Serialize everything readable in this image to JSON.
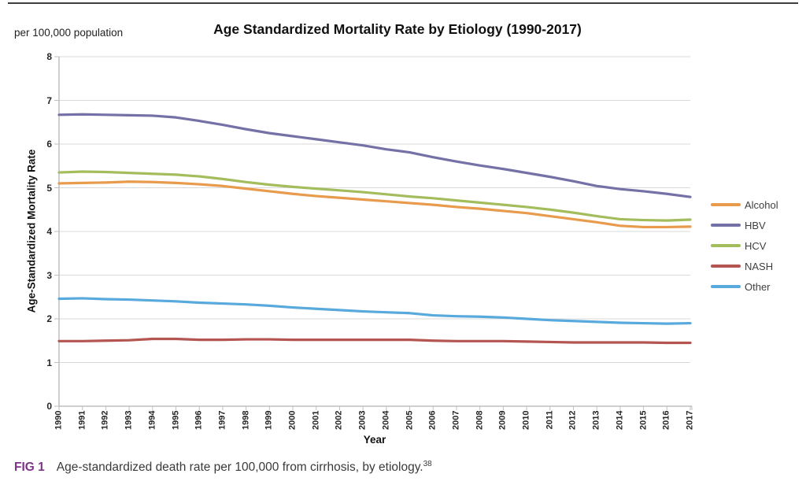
{
  "page": {
    "unit_label": "per 100,000 population",
    "caption_tag": "FIG 1",
    "caption_text": "Age-standardized death rate per 100,000 from cirrhosis, by etiology.",
    "caption_superscript": "38"
  },
  "chart_data": {
    "type": "line",
    "title": "Age Standardized Mortality Rate by Etiology (1990-2017)",
    "xlabel": "Year",
    "ylabel": "Age-Standardized Mortality Rate",
    "ylim": [
      0,
      8
    ],
    "y_ticks": [
      0,
      1,
      2,
      3,
      4,
      5,
      6,
      7,
      8
    ],
    "grid": true,
    "legend_position": "right",
    "x": [
      1990,
      1991,
      1992,
      1993,
      1994,
      1995,
      1996,
      1997,
      1998,
      1999,
      2000,
      2001,
      2002,
      2003,
      2004,
      2005,
      2006,
      2007,
      2008,
      2009,
      2010,
      2011,
      2012,
      2013,
      2014,
      2015,
      2016,
      2017
    ],
    "series": [
      {
        "name": "Alcohol",
        "color": "#E89A4D",
        "values": [
          5.1,
          5.11,
          5.12,
          5.14,
          5.13,
          5.11,
          5.08,
          5.04,
          4.98,
          4.92,
          4.86,
          4.81,
          4.77,
          4.73,
          4.69,
          4.65,
          4.61,
          4.56,
          4.52,
          4.47,
          4.42,
          4.35,
          4.28,
          4.21,
          4.13,
          4.1,
          4.1,
          4.11
        ]
      },
      {
        "name": "HBV",
        "color": "#7471A6",
        "values": [
          6.67,
          6.68,
          6.67,
          6.66,
          6.65,
          6.61,
          6.53,
          6.44,
          6.34,
          6.25,
          6.18,
          6.11,
          6.04,
          5.97,
          5.88,
          5.81,
          5.7,
          5.6,
          5.51,
          5.43,
          5.34,
          5.25,
          5.15,
          5.04,
          4.97,
          4.92,
          4.86,
          4.79
        ]
      },
      {
        "name": "HCV",
        "color": "#A3BD5C",
        "values": [
          5.35,
          5.37,
          5.36,
          5.34,
          5.32,
          5.3,
          5.26,
          5.2,
          5.13,
          5.07,
          5.02,
          4.98,
          4.94,
          4.9,
          4.85,
          4.8,
          4.76,
          4.71,
          4.66,
          4.61,
          4.56,
          4.5,
          4.43,
          4.35,
          4.28,
          4.26,
          4.25,
          4.27
        ]
      },
      {
        "name": "NASH",
        "color": "#B45551",
        "values": [
          1.49,
          1.49,
          1.5,
          1.51,
          1.54,
          1.54,
          1.52,
          1.52,
          1.53,
          1.53,
          1.52,
          1.52,
          1.52,
          1.52,
          1.52,
          1.52,
          1.5,
          1.49,
          1.49,
          1.49,
          1.48,
          1.47,
          1.46,
          1.46,
          1.46,
          1.46,
          1.45,
          1.45
        ]
      },
      {
        "name": "Other",
        "color": "#58A9DC",
        "values": [
          2.46,
          2.47,
          2.45,
          2.44,
          2.42,
          2.4,
          2.37,
          2.35,
          2.33,
          2.3,
          2.26,
          2.23,
          2.2,
          2.17,
          2.15,
          2.13,
          2.08,
          2.06,
          2.05,
          2.03,
          2.0,
          1.97,
          1.95,
          1.93,
          1.91,
          1.9,
          1.89,
          1.9
        ]
      }
    ]
  }
}
